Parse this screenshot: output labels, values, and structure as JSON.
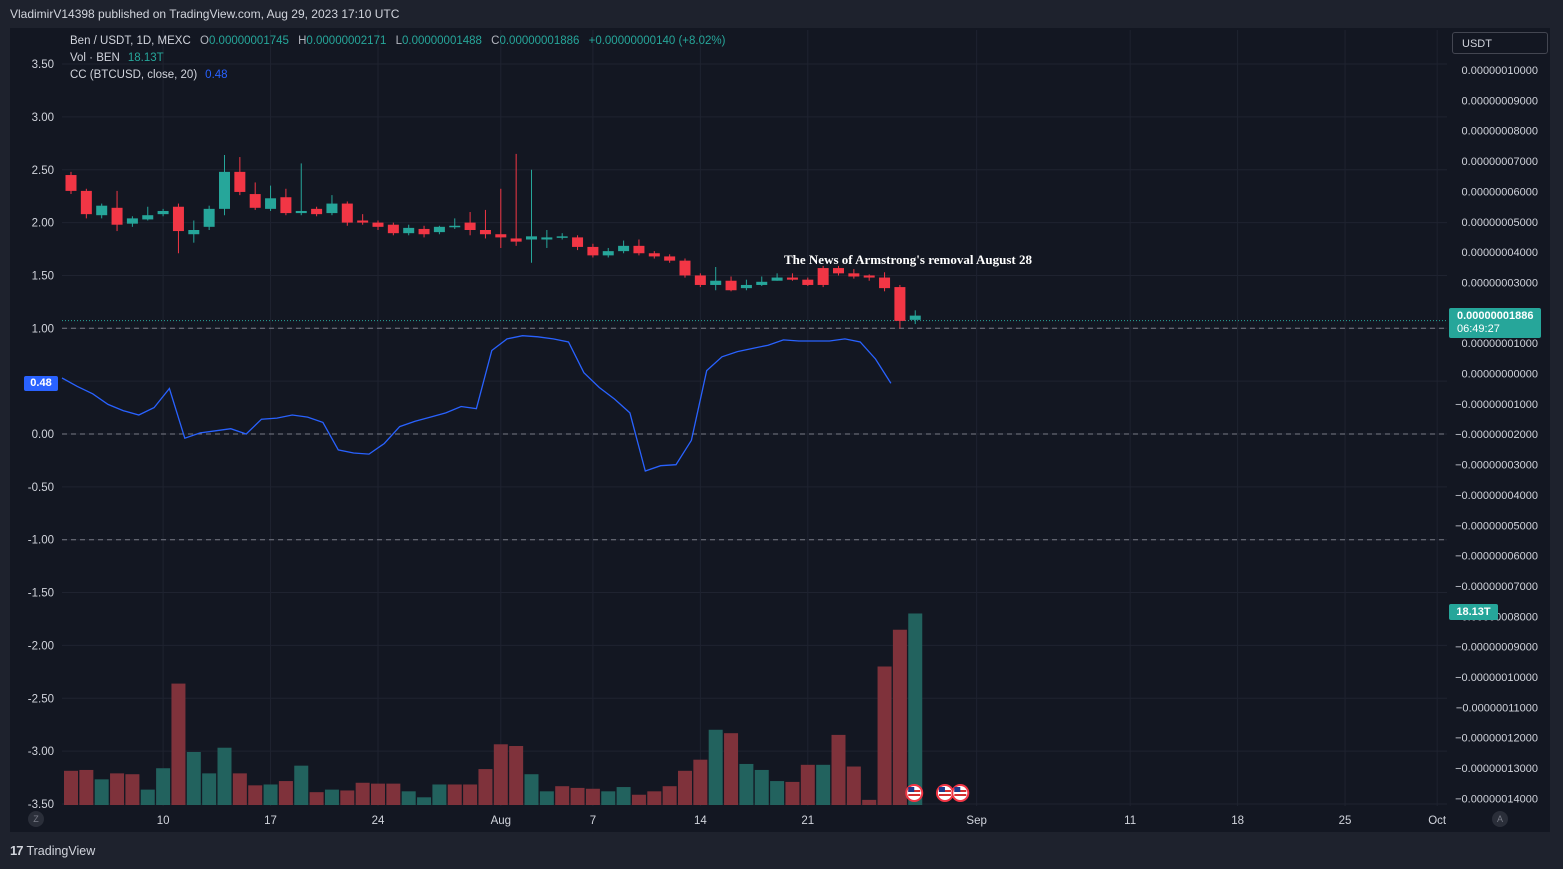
{
  "header": {
    "publisher": "VladimirV14398 published on TradingView.com, Aug 29, 2023 17:10 UTC"
  },
  "legend": {
    "symbol": "Ben / USDT, 1D, MEXC",
    "o_label": "O",
    "o_value": "0.00000001745",
    "h_label": "H",
    "h_value": "0.00000002171",
    "l_label": "L",
    "l_value": "0.00000001488",
    "c_label": "C",
    "c_value": "0.00000001886",
    "change": "+0.00000000140 (+8.02%)",
    "vol_label": "Vol · BEN",
    "vol_value": "18.13T",
    "cc_label": "CC (BTCUSD, close, 20)",
    "cc_value": "0.48"
  },
  "price_scale": {
    "unit": "USDT",
    "last_price": "0.00000001886",
    "countdown": "06:49:27",
    "vol_badge": "18.13T"
  },
  "cc_badge": "0.48",
  "annotation": "The News of Armstrong's removal August 28",
  "branding": "TradingView",
  "corner_buttons": {
    "left": "Z",
    "right": "A"
  },
  "colors": {
    "background": "#1e222d",
    "up": "#26a69a",
    "down": "#f23645",
    "vol_up": "#22625e",
    "vol_down": "#7f323b",
    "cc_line": "#2962ff",
    "text": "#d1d4dc"
  },
  "chart_data": {
    "type": "candlestick",
    "candle_start_date": "2023-07-04",
    "candles": [
      [
        2.45,
        2.3,
        2.48,
        2.27
      ],
      [
        2.3,
        2.08,
        2.32,
        2.04
      ],
      [
        2.07,
        2.16,
        2.18,
        2.04
      ],
      [
        2.14,
        1.98,
        2.3,
        1.92
      ],
      [
        1.99,
        2.04,
        2.06,
        1.96
      ],
      [
        2.03,
        2.07,
        2.15,
        2.02
      ],
      [
        2.08,
        2.11,
        2.13,
        2.06
      ],
      [
        2.15,
        1.92,
        2.18,
        1.71
      ],
      [
        1.89,
        1.93,
        2.02,
        1.81
      ],
      [
        1.96,
        2.13,
        2.16,
        1.93
      ],
      [
        2.13,
        2.48,
        2.64,
        2.07
      ],
      [
        2.48,
        2.29,
        2.62,
        2.26
      ],
      [
        2.27,
        2.14,
        2.38,
        2.12
      ],
      [
        2.13,
        2.23,
        2.35,
        2.11
      ],
      [
        2.24,
        2.09,
        2.32,
        2.07
      ],
      [
        2.09,
        2.11,
        2.56,
        2.07
      ],
      [
        2.13,
        2.08,
        2.15,
        2.06
      ],
      [
        2.09,
        2.18,
        2.26,
        2.07
      ],
      [
        2.18,
        2.0,
        2.2,
        1.97
      ],
      [
        2.02,
        2.0,
        2.08,
        1.98
      ],
      [
        2.0,
        1.96,
        2.02,
        1.93
      ],
      [
        1.98,
        1.9,
        2.0,
        1.88
      ],
      [
        1.9,
        1.95,
        1.98,
        1.88
      ],
      [
        1.94,
        1.89,
        1.97,
        1.86
      ],
      [
        1.91,
        1.96,
        1.97,
        1.89
      ],
      [
        1.96,
        1.97,
        2.04,
        1.94
      ],
      [
        2.0,
        1.93,
        2.1,
        1.88
      ],
      [
        1.93,
        1.89,
        2.12,
        1.85
      ],
      [
        1.89,
        1.86,
        2.32,
        1.76
      ],
      [
        1.85,
        1.82,
        2.65,
        1.78
      ],
      [
        1.84,
        1.87,
        2.5,
        1.62
      ],
      [
        1.84,
        1.86,
        1.93,
        1.76
      ],
      [
        1.86,
        1.87,
        1.9,
        1.84
      ],
      [
        1.86,
        1.77,
        1.88,
        1.74
      ],
      [
        1.77,
        1.69,
        1.8,
        1.67
      ],
      [
        1.69,
        1.73,
        1.76,
        1.67
      ],
      [
        1.73,
        1.78,
        1.83,
        1.71
      ],
      [
        1.78,
        1.71,
        1.84,
        1.69
      ],
      [
        1.71,
        1.68,
        1.73,
        1.66
      ],
      [
        1.68,
        1.64,
        1.7,
        1.62
      ],
      [
        1.64,
        1.5,
        1.66,
        1.48
      ],
      [
        1.5,
        1.41,
        1.52,
        1.39
      ],
      [
        1.41,
        1.45,
        1.58,
        1.36
      ],
      [
        1.45,
        1.36,
        1.49,
        1.35
      ],
      [
        1.38,
        1.41,
        1.46,
        1.36
      ],
      [
        1.41,
        1.44,
        1.49,
        1.4
      ],
      [
        1.45,
        1.48,
        1.52,
        1.45
      ],
      [
        1.48,
        1.46,
        1.52,
        1.45
      ],
      [
        1.46,
        1.41,
        1.48,
        1.4
      ],
      [
        1.57,
        1.41,
        1.59,
        1.39
      ],
      [
        1.57,
        1.52,
        1.59,
        1.5
      ],
      [
        1.52,
        1.49,
        1.56,
        1.47
      ],
      [
        1.5,
        1.48,
        1.51,
        1.45
      ],
      [
        1.48,
        1.38,
        1.53,
        1.35
      ],
      [
        1.39,
        1.07,
        1.41,
        1.0
      ],
      [
        1.08,
        1.12,
        1.17,
        1.04
      ]
    ],
    "volumes": [
      [
        0.4,
        0
      ],
      [
        0.41,
        0
      ],
      [
        0.3,
        1
      ],
      [
        0.37,
        0
      ],
      [
        0.36,
        0
      ],
      [
        0.18,
        1
      ],
      [
        0.43,
        1
      ],
      [
        1.42,
        0
      ],
      [
        0.62,
        1
      ],
      [
        0.37,
        1
      ],
      [
        0.67,
        1
      ],
      [
        0.37,
        0
      ],
      [
        0.23,
        0
      ],
      [
        0.24,
        1
      ],
      [
        0.28,
        0
      ],
      [
        0.46,
        1
      ],
      [
        0.15,
        0
      ],
      [
        0.18,
        1
      ],
      [
        0.17,
        0
      ],
      [
        0.26,
        0
      ],
      [
        0.25,
        0
      ],
      [
        0.25,
        0
      ],
      [
        0.16,
        1
      ],
      [
        0.09,
        1
      ],
      [
        0.24,
        1
      ],
      [
        0.24,
        0
      ],
      [
        0.24,
        0
      ],
      [
        0.42,
        0
      ],
      [
        0.71,
        0
      ],
      [
        0.69,
        0
      ],
      [
        0.36,
        1
      ],
      [
        0.16,
        1
      ],
      [
        0.22,
        0
      ],
      [
        0.2,
        0
      ],
      [
        0.19,
        0
      ],
      [
        0.16,
        1
      ],
      [
        0.21,
        1
      ],
      [
        0.12,
        0
      ],
      [
        0.16,
        0
      ],
      [
        0.22,
        0
      ],
      [
        0.4,
        0
      ],
      [
        0.53,
        0
      ],
      [
        0.88,
        1
      ],
      [
        0.84,
        0
      ],
      [
        0.48,
        1
      ],
      [
        0.41,
        1
      ],
      [
        0.28,
        1
      ],
      [
        0.27,
        0
      ],
      [
        0.47,
        0
      ],
      [
        0.47,
        1
      ],
      [
        0.82,
        0
      ],
      [
        0.45,
        0
      ],
      [
        0.06,
        0
      ],
      [
        1.62,
        0
      ],
      [
        2.05,
        0
      ],
      [
        2.24,
        1
      ]
    ],
    "cc": [
      0.53,
      0.45,
      0.38,
      0.28,
      0.22,
      0.18,
      0.25,
      0.43,
      -0.04,
      0.01,
      0.03,
      0.05,
      0.0,
      0.14,
      0.15,
      0.18,
      0.16,
      0.11,
      -0.15,
      -0.18,
      -0.19,
      -0.09,
      0.07,
      0.12,
      0.16,
      0.2,
      0.26,
      0.24,
      0.79,
      0.9,
      0.93,
      0.92,
      0.9,
      0.87,
      0.58,
      0.44,
      0.33,
      0.2,
      -0.35,
      -0.3,
      -0.29,
      -0.06,
      0.6,
      0.73,
      0.78,
      0.81,
      0.84,
      0.89,
      0.88,
      0.88,
      0.88,
      0.9,
      0.87,
      0.71,
      0.48
    ],
    "left_axis": {
      "ylim": [
        -3.5,
        3.5
      ],
      "ticks": [
        "3.50",
        "3.00",
        "2.50",
        "2.00",
        "1.50",
        "1.00",
        "0.50",
        "0.00",
        "-0.50",
        "-1.00",
        "-1.50",
        "-2.00",
        "-2.50",
        "-3.00",
        "-3.50"
      ]
    },
    "right_axis": {
      "ticks": [
        "0.00000010000",
        "0.00000009000",
        "0.00000008000",
        "0.00000007000",
        "0.00000006000",
        "0.00000005000",
        "0.00000004000",
        "0.00000003000",
        "0.00000002000",
        "0.00000001000",
        "0.00000000000",
        "−0.00000001000",
        "−0.00000002000",
        "−0.00000003000",
        "−0.00000004000",
        "−0.00000005000",
        "−0.00000006000",
        "−0.00000007000",
        "−0.00000008000",
        "−0.00000009000",
        "−0.00000010000",
        "−0.00000011000",
        "−0.00000012000",
        "−0.00000013000",
        "−0.00000014000"
      ]
    },
    "x_ticks": [
      {
        "label": "10",
        "day": 6
      },
      {
        "label": "17",
        "day": 13
      },
      {
        "label": "24",
        "day": 20
      },
      {
        "label": "Aug",
        "day": 28
      },
      {
        "label": "7",
        "day": 34
      },
      {
        "label": "14",
        "day": 41
      },
      {
        "label": "21",
        "day": 48
      },
      {
        "label": "Sep",
        "day": 59
      },
      {
        "label": "11",
        "day": 69
      },
      {
        "label": "18",
        "day": 76
      },
      {
        "label": "25",
        "day": 83
      },
      {
        "label": "Oct",
        "day": 89
      }
    ],
    "reference_lines": [
      1.0,
      0.0,
      -1.0
    ],
    "last_price_level": 1.12,
    "event_flags": [
      55,
      57,
      58
    ]
  }
}
